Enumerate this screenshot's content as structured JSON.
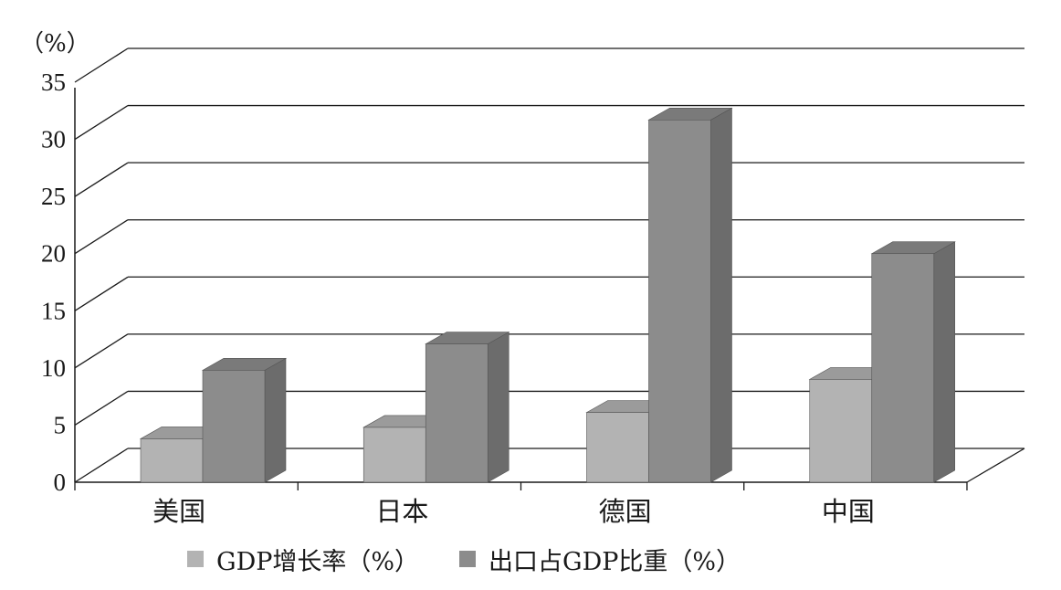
{
  "chart_data": {
    "type": "bar",
    "unit_label": "（%）",
    "categories": [
      "美国",
      "日本",
      "德国",
      "中国"
    ],
    "series": [
      {
        "name": "GDP增长率（%）",
        "values": [
          3.8,
          4.8,
          6.1,
          9.0
        ],
        "color": "#b3b3b3"
      },
      {
        "name": "出口占GDP比重（%）",
        "values": [
          9.8,
          12.1,
          31.7,
          20.0
        ],
        "color": "#8c8c8c"
      }
    ],
    "ylim": [
      0,
      35
    ],
    "yticks": [
      0,
      5,
      10,
      15,
      20,
      25,
      30,
      35
    ],
    "grid": true,
    "legend_position": "bottom",
    "style": "3d"
  }
}
